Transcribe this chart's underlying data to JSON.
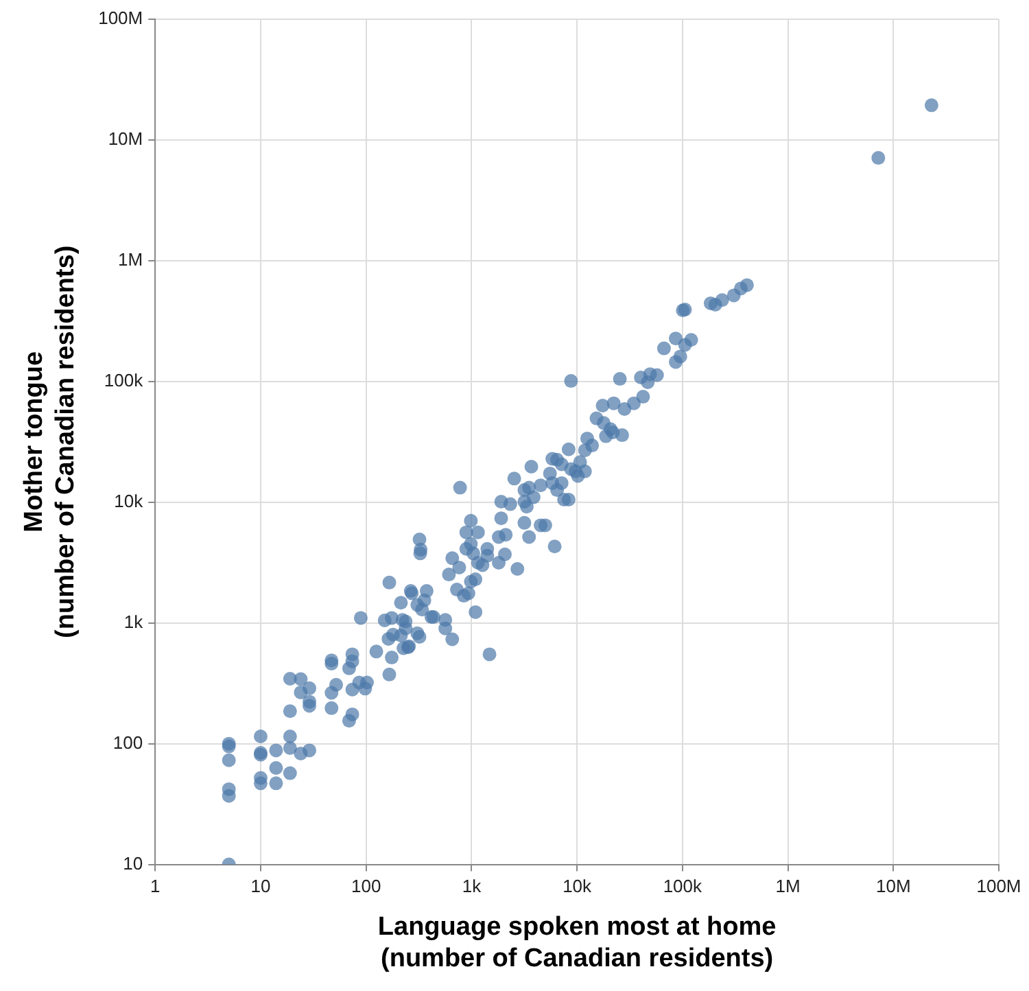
{
  "chart_data": {
    "type": "scatter",
    "xlabel": "Language spoken most at home\n(number of Canadian residents)",
    "ylabel": "Mother tongue\n(number of Canadian residents)",
    "color": "#4c78a8",
    "marker": "circle",
    "log": "xy",
    "grid": true,
    "xlim": [
      1,
      100000000
    ],
    "ylim": [
      10,
      100000000
    ],
    "xticks": [
      1,
      10,
      100,
      {
        "value": 1000,
        "label": "1k"
      },
      {
        "value": 10000,
        "label": "10k"
      },
      {
        "value": 100000,
        "label": "100k"
      },
      {
        "value": 1000000,
        "label": "1M"
      },
      {
        "value": 10000000,
        "label": "10M"
      },
      {
        "value": 100000000,
        "label": "100M"
      }
    ],
    "yticks": [
      10,
      100,
      {
        "value": 1000,
        "label": "1k"
      },
      {
        "value": 10000,
        "label": "10k"
      },
      {
        "value": 100000,
        "label": "100k"
      },
      {
        "value": 1000000,
        "label": "1M"
      },
      {
        "value": 10000000,
        "label": "10M"
      },
      {
        "value": 100000000,
        "label": "100M"
      }
    ],
    "x": [
      5,
      5,
      5,
      5,
      5,
      5,
      10,
      10,
      10,
      10,
      10,
      14,
      14,
      14,
      19,
      19,
      19,
      24,
      29,
      19,
      19,
      24,
      24,
      29,
      29,
      29,
      47,
      47,
      52,
      47,
      47,
      74,
      74,
      69,
      86,
      74,
      74,
      69,
      102,
      98,
      89,
      125,
      166,
      166,
      175,
      150,
      175,
      163,
      180,
      214,
      265,
      221,
      237,
      226,
      255,
      306,
      357,
      306,
      321,
      375,
      416,
      326,
      250,
      214,
      237,
      271,
      339,
      436,
      564,
      564,
      656,
      321,
      329,
      778,
      656,
      610,
      726,
      845,
      935,
      1090,
      1480,
      985,
      891,
      1150,
      985,
      891,
      1040,
      1150,
      1270,
      1410,
      1410,
      1090,
      985,
      764,
      1810,
      2070,
      2720,
      1910,
      1910,
      1810,
      2110,
      2330,
      2540,
      3690,
      3170,
      3340,
      3880,
      3170,
      3510,
      5000,
      4520,
      6140,
      4520,
      5540,
      5830,
      7150,
      7530,
      8330,
      6470,
      8770,
      10200,
      10700,
      11900,
      8770,
      25500,
      40300,
      49300,
      57400,
      46900,
      42300,
      34600,
      28200,
      22300,
      17500,
      15300,
      17900,
      20800,
      18800,
      21900,
      26800,
      12500,
      13900,
      11900,
      8330,
      5830,
      9700,
      7150,
      6470,
      3510,
      3170,
      66800,
      86300,
      121000,
      105700,
      95500,
      86300,
      100700,
      105700,
      185000,
      205000,
      238000,
      307000,
      358000,
      409000,
      7200000,
      23000000
    ],
    "values": [
      10,
      42,
      37,
      73,
      100,
      95,
      115,
      84,
      81,
      52,
      47,
      88,
      63,
      47,
      115,
      92,
      57,
      83,
      88,
      186,
      345,
      343,
      266,
      288,
      223,
      206,
      490,
      460,
      308,
      264,
      197,
      550,
      481,
      421,
      321,
      281,
      175,
      155,
      321,
      286,
      1100,
      580,
      2160,
      374,
      517,
      1050,
      1100,
      738,
      800,
      1470,
      1840,
      1060,
      901,
      618,
      641,
      1410,
      1540,
      822,
      767,
      1840,
      1120,
      3770,
      629,
      787,
      1030,
      1760,
      1290,
      1120,
      1060,
      901,
      733,
      4920,
      4050,
      13200,
      3440,
      2520,
      1890,
      1680,
      1760,
      1230,
      550,
      7030,
      5630,
      5630,
      4510,
      4110,
      3770,
      3150,
      3010,
      4110,
      3600,
      2300,
      2200,
      2880,
      3150,
      3700,
      2800,
      10100,
      7360,
      5150,
      5380,
      9640,
      15700,
      19700,
      12600,
      9200,
      11000,
      6750,
      5150,
      6440,
      6440,
      4300,
      13800,
      17300,
      14400,
      14400,
      10500,
      10500,
      22500,
      18800,
      16500,
      21500,
      18000,
      101000,
      105000,
      108000,
      115000,
      113000,
      98600,
      74700,
      65900,
      59200,
      65900,
      63100,
      49500,
      45300,
      40300,
      35200,
      37900,
      35900,
      33700,
      29500,
      26900,
      27400,
      22900,
      18000,
      20600,
      12600,
      13200,
      10100,
      188000,
      227000,
      221000,
      201000,
      161000,
      145000,
      388000,
      394000,
      444000,
      432000,
      472000,
      516000,
      589000,
      628000,
      7100000,
      19400000
    ]
  }
}
